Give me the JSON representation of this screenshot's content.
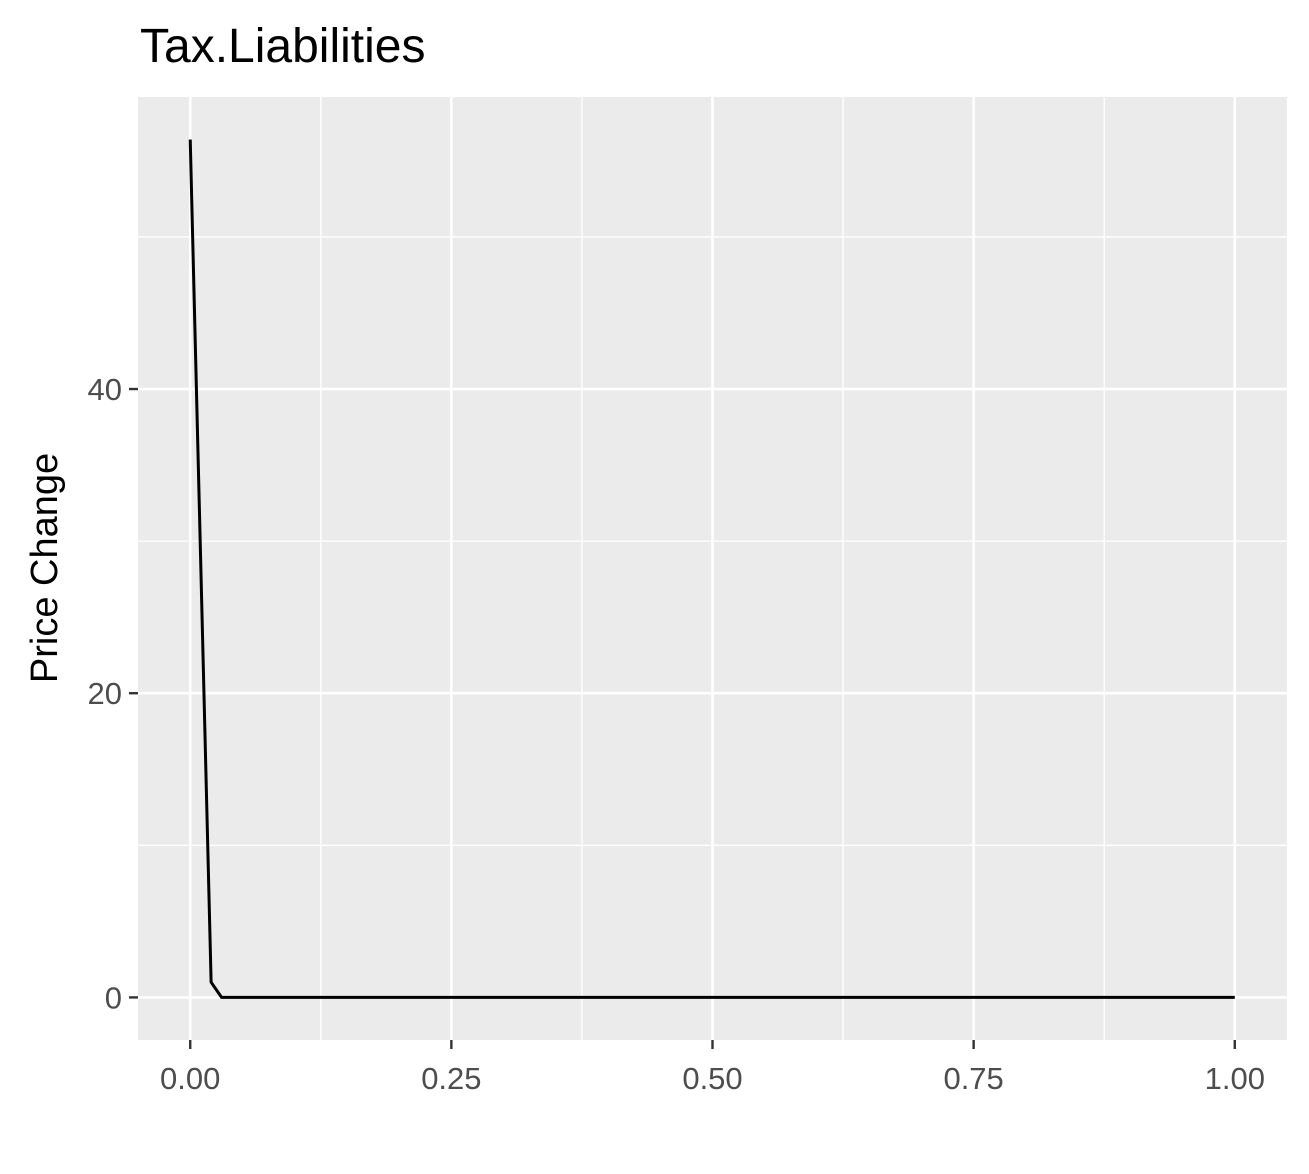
{
  "chart_data": {
    "type": "line",
    "title": "Tax.Liabilities",
    "xlabel": "",
    "ylabel": "Price Change",
    "xlim": [
      -0.05,
      1.05
    ],
    "ylim": [
      -2.8,
      59.2
    ],
    "x_ticks": [
      0.0,
      0.25,
      0.5,
      0.75,
      1.0
    ],
    "x_tick_labels": [
      "0.00",
      "0.25",
      "0.50",
      "0.75",
      "1.00"
    ],
    "y_ticks": [
      0,
      20,
      40
    ],
    "y_tick_labels": [
      "0",
      "20",
      "40"
    ],
    "grid": true,
    "series": [
      {
        "color": "#000000",
        "x": [
          0.0,
          0.02,
          0.03,
          0.05,
          0.1,
          0.2,
          0.3,
          0.4,
          0.5,
          0.6,
          0.7,
          0.8,
          0.9,
          1.0
        ],
        "y": [
          56.4,
          1.0,
          0.0,
          0.0,
          0.0,
          0.0,
          0.0,
          0.0,
          0.0,
          0.0,
          0.0,
          0.0,
          0.0,
          0.0
        ]
      }
    ],
    "colors": {
      "panel_background": "#ebebeb",
      "grid_line": "#ffffff",
      "tick_mark": "#333333",
      "tick_text": "#4d4d4d"
    }
  }
}
